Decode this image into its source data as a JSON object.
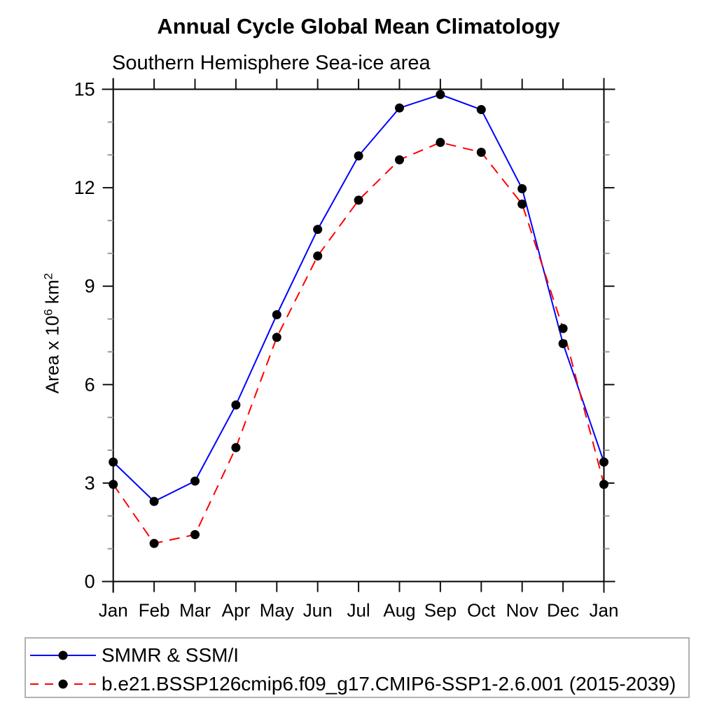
{
  "title": "Annual Cycle Global Mean Climatology",
  "subtitle": "Southern Hemisphere Sea-ice area",
  "yaxis": {
    "label_base": "Area x 10",
    "label_sup": "6",
    "label_unit": " km",
    "label_unit_sup": "2"
  },
  "chart_data": {
    "type": "line",
    "title": "Annual Cycle Global Mean Climatology",
    "subtitle": "Southern Hemisphere Sea-ice area",
    "xlabel": "",
    "ylabel": "Area x 10^6 km^2",
    "categories": [
      "Jan",
      "Feb",
      "Mar",
      "Apr",
      "May",
      "Jun",
      "Jul",
      "Aug",
      "Sep",
      "Oct",
      "Nov",
      "Dec",
      "Jan"
    ],
    "series": [
      {
        "name": "SMMR & SSM/I",
        "color": "#0000ff",
        "line_style": "solid",
        "marker": "filled-circle",
        "marker_color": "#000000",
        "values": [
          3.64,
          2.44,
          3.06,
          5.38,
          8.13,
          10.73,
          12.97,
          14.43,
          14.84,
          14.38,
          11.97,
          7.25,
          3.64
        ]
      },
      {
        "name": "b.e21.BSSP126cmip6.f09_g17.CMIP6-SSP1-2.6.001 (2015-2039)",
        "color": "#ff0000",
        "line_style": "dashed",
        "marker": "filled-circle",
        "marker_color": "#000000",
        "values": [
          2.96,
          1.16,
          1.43,
          4.08,
          7.44,
          9.92,
          11.62,
          12.85,
          13.38,
          13.08,
          11.5,
          7.71,
          2.96
        ]
      }
    ],
    "ylim": [
      0,
      15
    ],
    "ytick_major": [
      0,
      3,
      6,
      9,
      12,
      15
    ],
    "ytick_minor_step": 1,
    "grid": false,
    "legend_position": "bottom-left-box",
    "colors": {
      "axis": "#000000",
      "major_tick": "#111111",
      "minor_tick": "#999999",
      "legend_border": "#b2b2b2",
      "background": "#ffffff"
    }
  }
}
